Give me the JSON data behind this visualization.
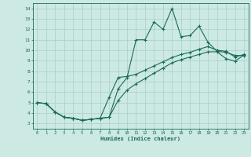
{
  "xlabel": "Humidex (Indice chaleur)",
  "xlim": [
    -0.5,
    23.5
  ],
  "ylim": [
    2.5,
    14.5
  ],
  "xticks": [
    0,
    1,
    2,
    3,
    4,
    5,
    6,
    7,
    8,
    9,
    10,
    11,
    12,
    13,
    14,
    15,
    16,
    17,
    18,
    19,
    20,
    21,
    22,
    23
  ],
  "yticks": [
    3,
    4,
    5,
    6,
    7,
    8,
    9,
    10,
    11,
    12,
    13,
    14
  ],
  "bg_color": "#cce9e3",
  "line_color": "#1a6b5a",
  "grid_color": "#aacfc8",
  "line1_x": [
    0,
    1,
    2,
    3,
    4,
    5,
    6,
    7,
    8,
    9,
    10,
    11,
    12,
    13,
    14,
    15,
    16,
    17,
    18,
    19,
    20,
    21,
    22,
    23
  ],
  "line1_y": [
    5.0,
    4.9,
    4.1,
    3.6,
    3.5,
    3.3,
    3.4,
    3.5,
    3.6,
    6.3,
    7.4,
    11.0,
    11.0,
    12.7,
    12.0,
    14.0,
    11.3,
    11.4,
    12.3,
    10.75,
    9.9,
    9.8,
    9.5,
    9.5
  ],
  "line2_x": [
    0,
    1,
    2,
    3,
    4,
    5,
    6,
    7,
    8,
    9,
    10,
    11,
    12,
    13,
    14,
    15,
    16,
    17,
    18,
    19,
    20,
    21,
    22,
    23
  ],
  "line2_y": [
    5.0,
    4.9,
    4.1,
    3.6,
    3.5,
    3.3,
    3.4,
    3.5,
    5.5,
    7.4,
    7.5,
    7.7,
    8.1,
    8.5,
    8.9,
    9.3,
    9.6,
    9.8,
    10.1,
    10.35,
    10.0,
    9.9,
    9.35,
    9.6
  ],
  "line3_x": [
    0,
    1,
    2,
    3,
    4,
    5,
    6,
    7,
    8,
    9,
    10,
    11,
    12,
    13,
    14,
    15,
    16,
    17,
    18,
    19,
    20,
    21,
    22,
    23
  ],
  "line3_y": [
    5.0,
    4.9,
    4.1,
    3.6,
    3.5,
    3.3,
    3.4,
    3.5,
    3.6,
    5.2,
    6.2,
    6.8,
    7.3,
    7.8,
    8.3,
    8.8,
    9.1,
    9.35,
    9.6,
    9.85,
    9.85,
    9.2,
    8.95,
    9.55
  ]
}
